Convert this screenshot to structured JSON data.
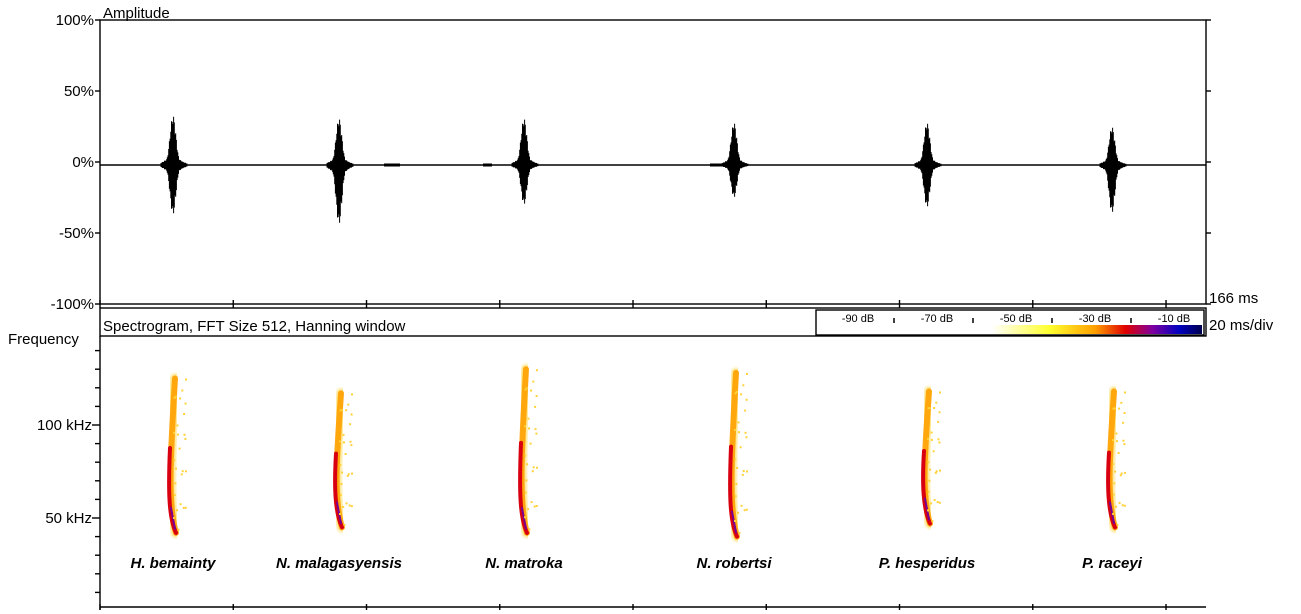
{
  "chart_data": [
    {
      "type": "waveform",
      "title": "Amplitude",
      "ytick_labels": [
        "100%",
        "50%",
        "0%",
        "-50%",
        "-100%"
      ],
      "ylim": [
        -100,
        100
      ],
      "time_window_label": "166 ms",
      "time_division_label": "20 ms/div",
      "calls": [
        {
          "species": "H. bemainty",
          "peak_pos": 35,
          "peak_neg": -35
        },
        {
          "species": "N. malagasyensis",
          "peak_pos": 33,
          "peak_neg": -42
        },
        {
          "species": "N. matroka",
          "peak_pos": 33,
          "peak_neg": -28
        },
        {
          "species": "N. robertsi",
          "peak_pos": 30,
          "peak_neg": -23
        },
        {
          "species": "P. hesperidus",
          "peak_pos": 30,
          "peak_neg": -30
        },
        {
          "species": "P. raceyi",
          "peak_pos": 27,
          "peak_neg": -34
        }
      ]
    },
    {
      "type": "heatmap",
      "title": "Spectrogram, FFT Size 512, Hanning window",
      "ylabel": "Frequency",
      "ytick_labels": [
        "100 kHz",
        "50 kHz"
      ],
      "ytick_values_khz": [
        100,
        50
      ],
      "colorbar": {
        "labels": [
          "-90 dB",
          "-70 dB",
          "-50 dB",
          "-30 dB",
          "-10 dB"
        ],
        "colors": [
          "#ffffff",
          "#ffff30",
          "#ffa000",
          "#e00000",
          "#8000a0",
          "#0000c0",
          "#000050"
        ]
      },
      "calls": [
        {
          "species": "H. bemainty",
          "start_khz": 125,
          "end_khz": 42
        },
        {
          "species": "N. malagasyensis",
          "start_khz": 117,
          "end_khz": 45
        },
        {
          "species": "N. matroka",
          "start_khz": 130,
          "end_khz": 42
        },
        {
          "species": "N. robertsi",
          "start_khz": 128,
          "end_khz": 40
        },
        {
          "species": "P. hesperidus",
          "start_khz": 118,
          "end_khz": 47
        },
        {
          "species": "P. raceyi",
          "start_khz": 118,
          "end_khz": 45
        }
      ]
    }
  ]
}
